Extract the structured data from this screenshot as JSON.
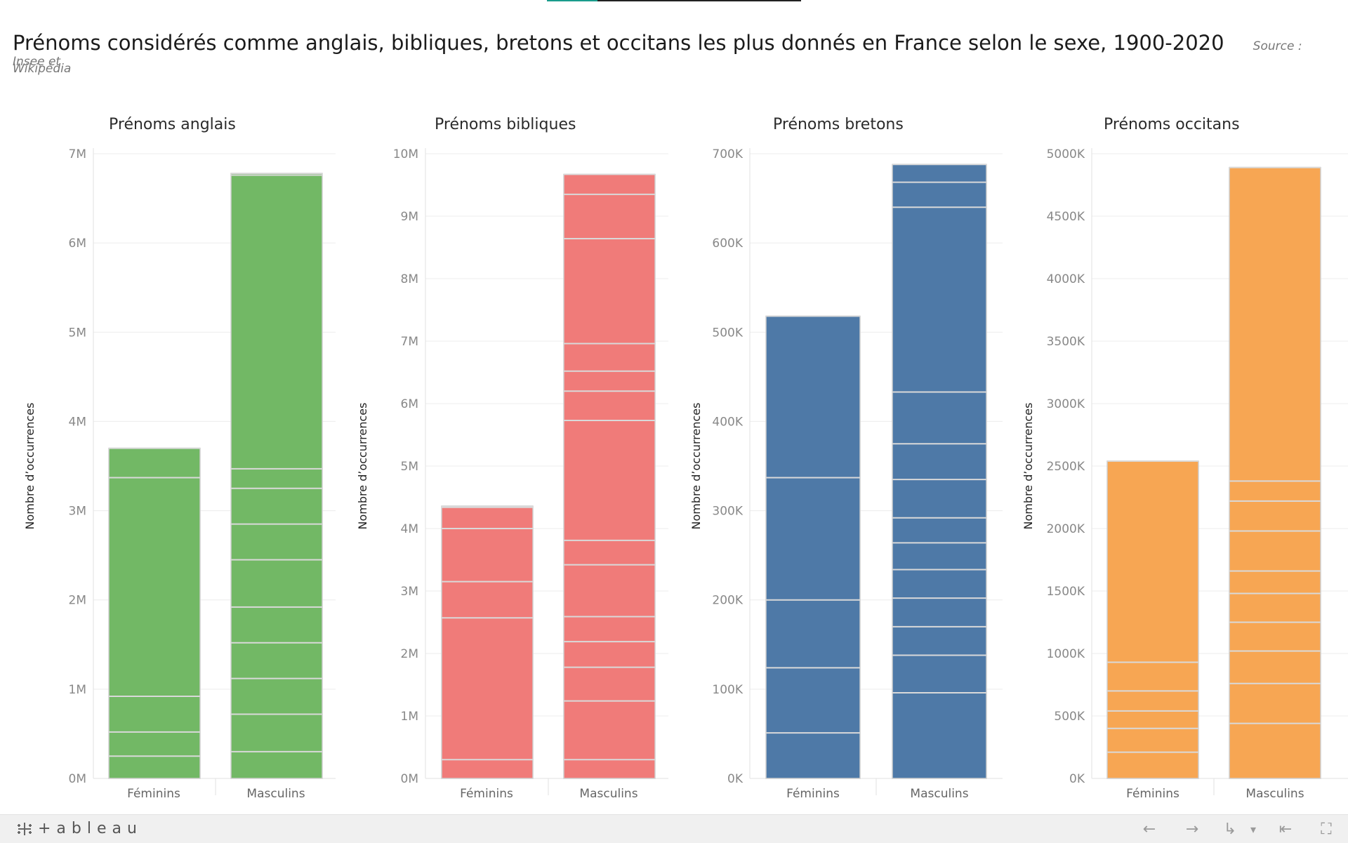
{
  "header": {
    "title": "Prénoms considérés comme anglais, bibliques, bretons et occitans les plus donnés en France selon le sexe, 1900-2020",
    "source_line1": "Source : Insee et",
    "source_line2": "Wikipédia"
  },
  "colors": {
    "anglais": "#72b865",
    "bibliques": "#f07b79",
    "bretons": "#4e79a7",
    "occitans": "#f7a653",
    "grid": "#ececec",
    "separator": "#d9d9d9",
    "active_tab": "#1a9c8c"
  },
  "chart_data": [
    {
      "type": "bar",
      "stacked": true,
      "title": "Prénoms anglais",
      "ylabel": "Nombre d’occurrences",
      "categories": [
        "Féminins",
        "Masculins"
      ],
      "ylim": [
        0,
        7000000
      ],
      "yticks": [
        0,
        1000000,
        2000000,
        3000000,
        4000000,
        5000000,
        6000000,
        7000000
      ],
      "ytick_labels": [
        "0M",
        "1M",
        "2M",
        "3M",
        "4M",
        "5M",
        "6M",
        "7M"
      ],
      "totals": [
        3700000,
        6780000
      ],
      "segment_boundaries": [
        [
          250000,
          520000,
          920000,
          3370000,
          3700000
        ],
        [
          300000,
          720000,
          1120000,
          1520000,
          1920000,
          2450000,
          2850000,
          3250000,
          3470000,
          6760000,
          6780000
        ]
      ],
      "color_key": "anglais"
    },
    {
      "type": "bar",
      "stacked": true,
      "title": "Prénoms bibliques",
      "ylabel": "Nombre d’occurrences",
      "categories": [
        "Féminins",
        "Masculins"
      ],
      "ylim": [
        0,
        10000000
      ],
      "yticks": [
        0,
        1000000,
        2000000,
        3000000,
        4000000,
        5000000,
        6000000,
        7000000,
        8000000,
        9000000,
        10000000
      ],
      "ytick_labels": [
        "0M",
        "1M",
        "2M",
        "3M",
        "4M",
        "5M",
        "6M",
        "7M",
        "8M",
        "9M",
        "10M"
      ],
      "totals": [
        4360000,
        9670000
      ],
      "segment_boundaries": [
        [
          300000,
          2570000,
          3150000,
          4000000,
          4340000,
          4360000
        ],
        [
          300000,
          1240000,
          1780000,
          2190000,
          2590000,
          3420000,
          3810000,
          5730000,
          6200000,
          6520000,
          6960000,
          8640000,
          9350000,
          9670000
        ]
      ],
      "color_key": "bibliques"
    },
    {
      "type": "bar",
      "stacked": true,
      "title": "Prénoms bretons",
      "ylabel": "Nombre d’occurrences",
      "categories": [
        "Féminins",
        "Masculins"
      ],
      "ylim": [
        0,
        700000
      ],
      "yticks": [
        0,
        100000,
        200000,
        300000,
        400000,
        500000,
        600000,
        700000
      ],
      "ytick_labels": [
        "0K",
        "100K",
        "200K",
        "300K",
        "400K",
        "500K",
        "600K",
        "700K"
      ],
      "totals": [
        518000,
        688000
      ],
      "segment_boundaries": [
        [
          51000,
          124000,
          200000,
          337000,
          518000
        ],
        [
          96000,
          138000,
          170000,
          202000,
          234000,
          264000,
          292000,
          335000,
          375000,
          433000,
          640000,
          668000,
          688000
        ]
      ],
      "color_key": "bretons"
    },
    {
      "type": "bar",
      "stacked": true,
      "title": "Prénoms occitans",
      "ylabel": "Nombre d’occurrences",
      "categories": [
        "Féminins",
        "Masculins"
      ],
      "ylim": [
        0,
        5000000
      ],
      "yticks": [
        0,
        500000,
        1000000,
        1500000,
        2000000,
        2500000,
        3000000,
        3500000,
        4000000,
        4500000,
        5000000
      ],
      "ytick_labels": [
        "0K",
        "500K",
        "1000K",
        "1500K",
        "2000K",
        "2500K",
        "3000K",
        "3500K",
        "4000K",
        "4500K",
        "5000K"
      ],
      "totals": [
        2540000,
        4890000
      ],
      "segment_boundaries": [
        [
          210000,
          400000,
          540000,
          700000,
          930000,
          2540000
        ],
        [
          440000,
          760000,
          1020000,
          1250000,
          1480000,
          1660000,
          1980000,
          2220000,
          2380000,
          4890000
        ]
      ],
      "color_key": "occitans"
    }
  ],
  "footer": {
    "logo_text": "+ableau",
    "logo_icon": "tableau-cross-icon",
    "controls": [
      {
        "name": "undo-icon",
        "glyph": "←"
      },
      {
        "name": "redo-icon",
        "glyph": "→"
      },
      {
        "name": "revert-icon",
        "glyph": "↳"
      },
      {
        "name": "share-dropdown-icon",
        "glyph": "▾"
      },
      {
        "name": "first-page-icon",
        "glyph": "⇤"
      },
      {
        "name": "fullscreen-icon",
        "glyph": "⛶"
      }
    ]
  }
}
